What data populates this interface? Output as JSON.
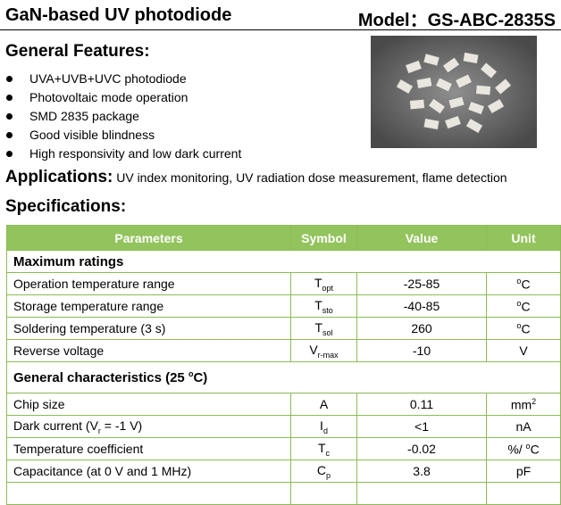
{
  "header": {
    "title": "GaN-based UV photodiode",
    "model": "Model：GS-ABC-2835S"
  },
  "features": {
    "heading": "General Features:",
    "items": [
      "UVA+UVB+UVC photodiode",
      "Photovoltaic mode operation",
      "SMD 2835 package",
      "Good visible blindness",
      "High responsivity and low dark current"
    ]
  },
  "applications": {
    "heading": "Applications:",
    "text": "UV index monitoring, UV radiation dose measurement, flame detection"
  },
  "specifications": {
    "heading": "Specifications:",
    "table": {
      "columns": [
        "Parameters",
        "Symbol",
        "Value",
        "Unit"
      ],
      "sections": [
        {
          "title": "Maximum ratings",
          "rows": [
            {
              "parameter": "Operation temperature range",
              "symbol": [
                "T",
                {
                  "sub": "opt"
                }
              ],
              "value": "-25-85",
              "unit": [
                {
                  "sup": "o"
                },
                "C"
              ]
            },
            {
              "parameter": "Storage temperature range",
              "symbol": [
                "T",
                {
                  "sub": "sto"
                }
              ],
              "value": "-40-85",
              "unit": [
                {
                  "sup": "o"
                },
                "C"
              ]
            },
            {
              "parameter": "Soldering temperature (3 s)",
              "symbol": [
                "T",
                {
                  "sub": "sol"
                }
              ],
              "value": "260",
              "unit": [
                {
                  "sup": "o"
                },
                "C"
              ]
            },
            {
              "parameter": "Reverse voltage",
              "symbol": [
                "V",
                {
                  "sub": "r-max"
                }
              ],
              "value": "-10",
              "unit": "V"
            }
          ]
        },
        {
          "title": [
            "General characteristics (25 ",
            {
              "sup": "o"
            },
            "C)"
          ],
          "rows": [
            {
              "parameter": "Chip size",
              "symbol": "A",
              "value": "0.11",
              "unit": [
                "mm",
                {
                  "sup": "2"
                }
              ]
            },
            {
              "parameter": [
                "Dark current (V",
                {
                  "sub": "r"
                },
                " = -1 V)"
              ],
              "symbol": [
                "I",
                {
                  "sub": "d"
                }
              ],
              "value": "<1",
              "unit": "nA"
            },
            {
              "parameter": "Temperature coefficient",
              "symbol": [
                "T",
                {
                  "sub": "c"
                }
              ],
              "value": "-0.02",
              "unit": [
                "%/ ",
                {
                  "sup": "o"
                },
                "C"
              ]
            },
            {
              "parameter": "Capacitance (at 0 V and 1 MHz)",
              "symbol": [
                "C",
                {
                  "sub": "p"
                }
              ],
              "value": "3.8",
              "unit": "pF"
            }
          ]
        }
      ]
    }
  }
}
